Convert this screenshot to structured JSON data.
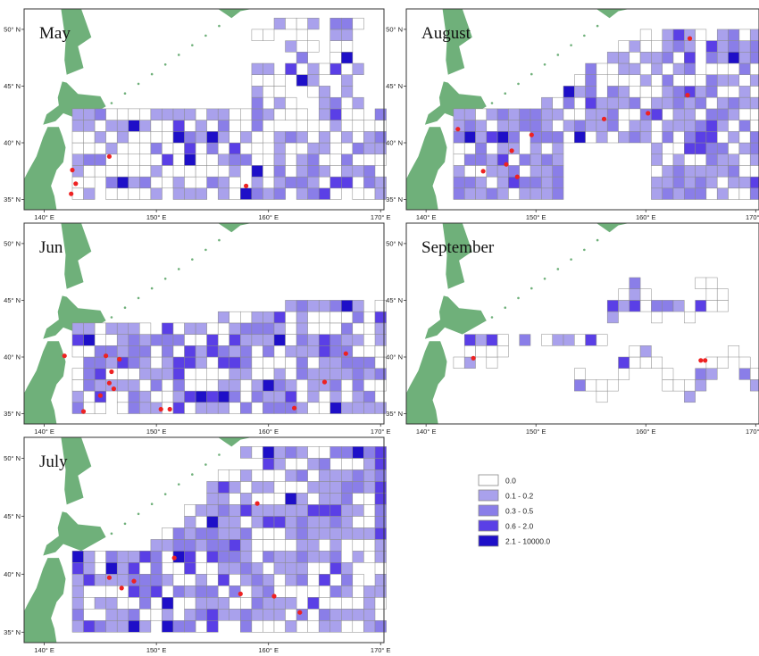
{
  "lon_ticks": [
    "140° E",
    "150° E",
    "160° E",
    "170° E"
  ],
  "lat_ticks": [
    "35° N",
    "40° N",
    "45° N",
    "50° N"
  ],
  "land_color": "#6fb07a",
  "marker_color": "#ee2222",
  "legend": [
    {
      "label": "0.0",
      "color": "#ffffff"
    },
    {
      "label": "0.1 - 0.2",
      "color": "#a9a1ec"
    },
    {
      "label": "0.3 - 0.5",
      "color": "#8a7ee8"
    },
    {
      "label": "0.6 - 2.0",
      "color": "#5a3fe6"
    },
    {
      "label": "2.1 - 10000.0",
      "color": "#1e0fc8"
    }
  ],
  "panels": [
    {
      "name": "May",
      "lat_range": [
        35,
        50
      ],
      "markers": [
        [
          142.5,
          37.6
        ],
        [
          142.8,
          36.4
        ],
        [
          142.4,
          35.5
        ],
        [
          145.8,
          38.8
        ],
        [
          158.0,
          36.2
        ]
      ]
    },
    {
      "name": "Jun",
      "lat_range": [
        35,
        50
      ],
      "markers": [
        [
          141.8,
          40.1
        ],
        [
          145.5,
          40.1
        ],
        [
          146.7,
          39.8
        ],
        [
          146.0,
          38.7
        ],
        [
          145.8,
          37.7
        ],
        [
          146.2,
          37.2
        ],
        [
          145.0,
          36.6
        ],
        [
          143.5,
          35.2
        ],
        [
          150.4,
          35.4
        ],
        [
          151.2,
          35.4
        ],
        [
          162.3,
          35.5
        ],
        [
          165.0,
          37.8
        ],
        [
          166.9,
          40.3
        ]
      ]
    },
    {
      "name": "July",
      "lat_range": [
        35,
        50
      ],
      "markers": [
        [
          145.8,
          39.7
        ],
        [
          148.0,
          39.4
        ],
        [
          146.9,
          38.8
        ],
        [
          151.6,
          41.4
        ],
        [
          159.0,
          46.1
        ],
        [
          157.5,
          38.3
        ],
        [
          160.5,
          38.1
        ],
        [
          162.8,
          36.7
        ]
      ]
    },
    {
      "name": "August",
      "lat_range": [
        35,
        50
      ],
      "markers": [
        [
          164.0,
          49.2
        ],
        [
          163.8,
          44.2
        ],
        [
          160.2,
          42.6
        ],
        [
          156.2,
          42.1
        ],
        [
          149.6,
          40.7
        ],
        [
          142.9,
          41.2
        ],
        [
          147.8,
          39.3
        ],
        [
          147.3,
          38.1
        ],
        [
          145.2,
          37.5
        ],
        [
          148.3,
          37.0
        ]
      ]
    },
    {
      "name": "September",
      "lat_range": [
        35,
        50
      ],
      "markers": [
        [
          144.3,
          39.9
        ],
        [
          165.0,
          39.7
        ],
        [
          165.4,
          39.7
        ]
      ]
    }
  ]
}
